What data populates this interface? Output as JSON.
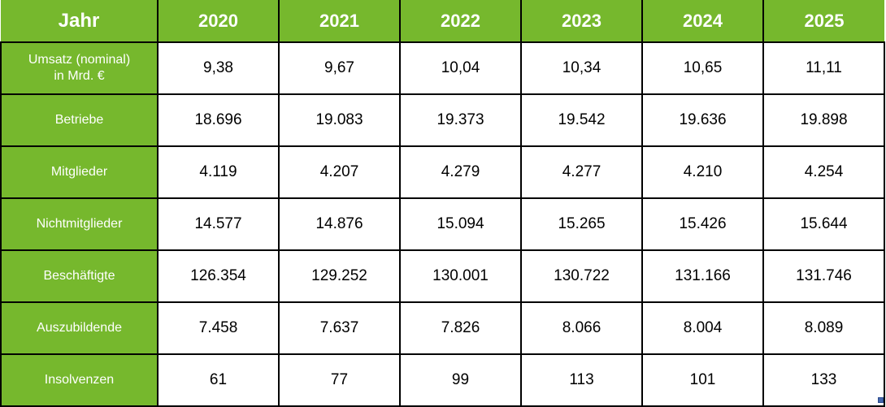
{
  "colors": {
    "header_green": "#76B82D",
    "header_text": "#FFFFFF",
    "cell_text": "#000000",
    "border": "#000000",
    "fill_handle_blue": "#4467AD"
  },
  "table": {
    "corner_label": "Jahr",
    "years": [
      "2020",
      "2021",
      "2022",
      "2023",
      "2024",
      "2025"
    ],
    "rows": [
      {
        "label": "Umsatz (nominal)\nin Mrd. €",
        "values": [
          "9,38",
          "9,67",
          "10,04",
          "10,34",
          "10,65",
          "11,11"
        ]
      },
      {
        "label": "Betriebe",
        "values": [
          "18.696",
          "19.083",
          "19.373",
          "19.542",
          "19.636",
          "19.898"
        ]
      },
      {
        "label": "Mitglieder",
        "values": [
          "4.119",
          "4.207",
          "4.279",
          "4.277",
          "4.210",
          "4.254"
        ]
      },
      {
        "label": "Nichtmitglieder",
        "values": [
          "14.577",
          "14.876",
          "15.094",
          "15.265",
          "15.426",
          "15.644"
        ]
      },
      {
        "label": "Beschäftigte",
        "values": [
          "126.354",
          "129.252",
          "130.001",
          "130.722",
          "131.166",
          "131.746"
        ]
      },
      {
        "label": "Auszubildende",
        "values": [
          "7.458",
          "7.637",
          "7.826",
          "8.066",
          "8.004",
          "8.089"
        ]
      },
      {
        "label": "Insolvenzen",
        "values": [
          "61",
          "77",
          "99",
          "113",
          "101",
          "133"
        ]
      }
    ]
  },
  "chart_data": {
    "type": "table",
    "title": "Jahr",
    "categories": [
      2020,
      2021,
      2022,
      2023,
      2024,
      2025
    ],
    "series": [
      {
        "name": "Umsatz (nominal) in Mrd. €",
        "values": [
          9.38,
          9.67,
          10.04,
          10.34,
          10.65,
          11.11
        ]
      },
      {
        "name": "Betriebe",
        "values": [
          18696,
          19083,
          19373,
          19542,
          19636,
          19898
        ]
      },
      {
        "name": "Mitglieder",
        "values": [
          4119,
          4207,
          4279,
          4277,
          4210,
          4254
        ]
      },
      {
        "name": "Nichtmitglieder",
        "values": [
          14577,
          14876,
          15094,
          15265,
          15426,
          15644
        ]
      },
      {
        "name": "Beschäftigte",
        "values": [
          126354,
          129252,
          130001,
          130722,
          131166,
          131746
        ]
      },
      {
        "name": "Auszubildende",
        "values": [
          7458,
          7637,
          7826,
          8066,
          8004,
          8089
        ]
      },
      {
        "name": "Insolvenzen",
        "values": [
          61,
          77,
          99,
          113,
          101,
          133
        ]
      }
    ]
  }
}
